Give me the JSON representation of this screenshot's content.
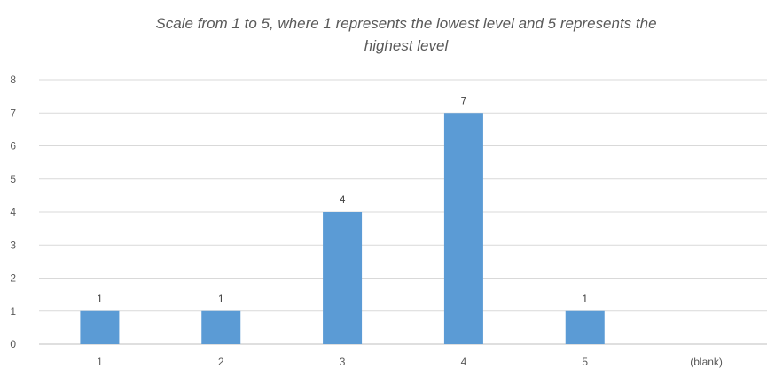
{
  "chart_data": {
    "type": "bar",
    "title": "Scale from 1 to 5, where 1 represents the lowest level and 5 represents the highest level",
    "title_lines": [
      "Scale from 1 to 5, where 1 represents the lowest level and 5 represents the",
      "highest level"
    ],
    "categories": [
      "1",
      "2",
      "3",
      "4",
      "5",
      "(blank)"
    ],
    "values": [
      1,
      1,
      4,
      7,
      1,
      null
    ],
    "data_labels": [
      "1",
      "1",
      "4",
      "7",
      "1",
      ""
    ],
    "ylim": [
      0,
      8
    ],
    "yticks": [
      "0",
      "1",
      "2",
      "3",
      "4",
      "5",
      "6",
      "7",
      "8"
    ],
    "xlabel": "",
    "ylabel": "",
    "grid": true,
    "legend": "none",
    "bar_color": "#5b9bd5",
    "grid_color": "#d9d9d9",
    "axis_color": "#bfbfbf"
  }
}
